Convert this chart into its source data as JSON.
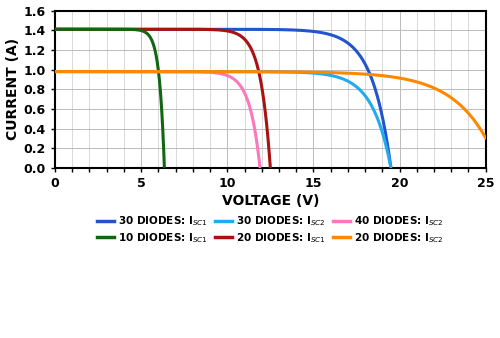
{
  "xlabel": "VOLTAGE (V)",
  "ylabel": "CURRENT (A)",
  "xlim": [
    0,
    25
  ],
  "ylim": [
    0,
    1.6
  ],
  "xticks": [
    0,
    5,
    10,
    15,
    20,
    25
  ],
  "yticks": [
    0,
    0.2,
    0.4,
    0.6,
    0.8,
    1.0,
    1.2,
    1.4,
    1.6
  ],
  "curve_params": [
    {
      "Isc": 1.41,
      "Voc": 19.5,
      "sharpness": 18,
      "color": "#2255cc",
      "label": "30 DIODES: I$_{SC1}$"
    },
    {
      "Isc": 1.41,
      "Voc": 12.5,
      "sharpness": 22,
      "color": "#aa1111",
      "label": "20 DIODES: I$_{SC1}$"
    },
    {
      "Isc": 1.41,
      "Voc": 6.35,
      "sharpness": 22,
      "color": "#116611",
      "label": "10 DIODES: I$_{SC1}$"
    },
    {
      "Isc": 0.98,
      "Voc": 11.9,
      "sharpness": 20,
      "color": "#ff77bb",
      "label": "40 DIODES: I$_{SC2}$"
    },
    {
      "Isc": 0.98,
      "Voc": 19.5,
      "sharpness": 18,
      "color": "#22aaee",
      "label": "30 DIODES: I$_{SC2}$"
    },
    {
      "Isc": 0.98,
      "Voc": 25.8,
      "sharpness": 12,
      "color": "#ff8800",
      "label": "20 DIODES: I$_{SC2}$"
    }
  ],
  "legend_order": [
    {
      "label": "30 DIODES: I$_{SC1}$",
      "color": "#2255cc"
    },
    {
      "label": "10 DIODES: I$_{SC1}$",
      "color": "#116611"
    },
    {
      "label": "30 DIODES: I$_{SC2}$",
      "color": "#22aaee"
    },
    {
      "label": "20 DIODES: I$_{SC1}$",
      "color": "#aa1111"
    },
    {
      "label": "40 DIODES: I$_{SC2}$",
      "color": "#ff77bb"
    },
    {
      "label": "20 DIODES: I$_{SC2}$",
      "color": "#ff8800"
    }
  ],
  "background_color": "#ffffff",
  "grid_color": "#bbbbbb",
  "tick_fontsize": 9,
  "axis_label_fontsize": 10,
  "legend_fontsize": 7.5,
  "linewidth": 2.2
}
